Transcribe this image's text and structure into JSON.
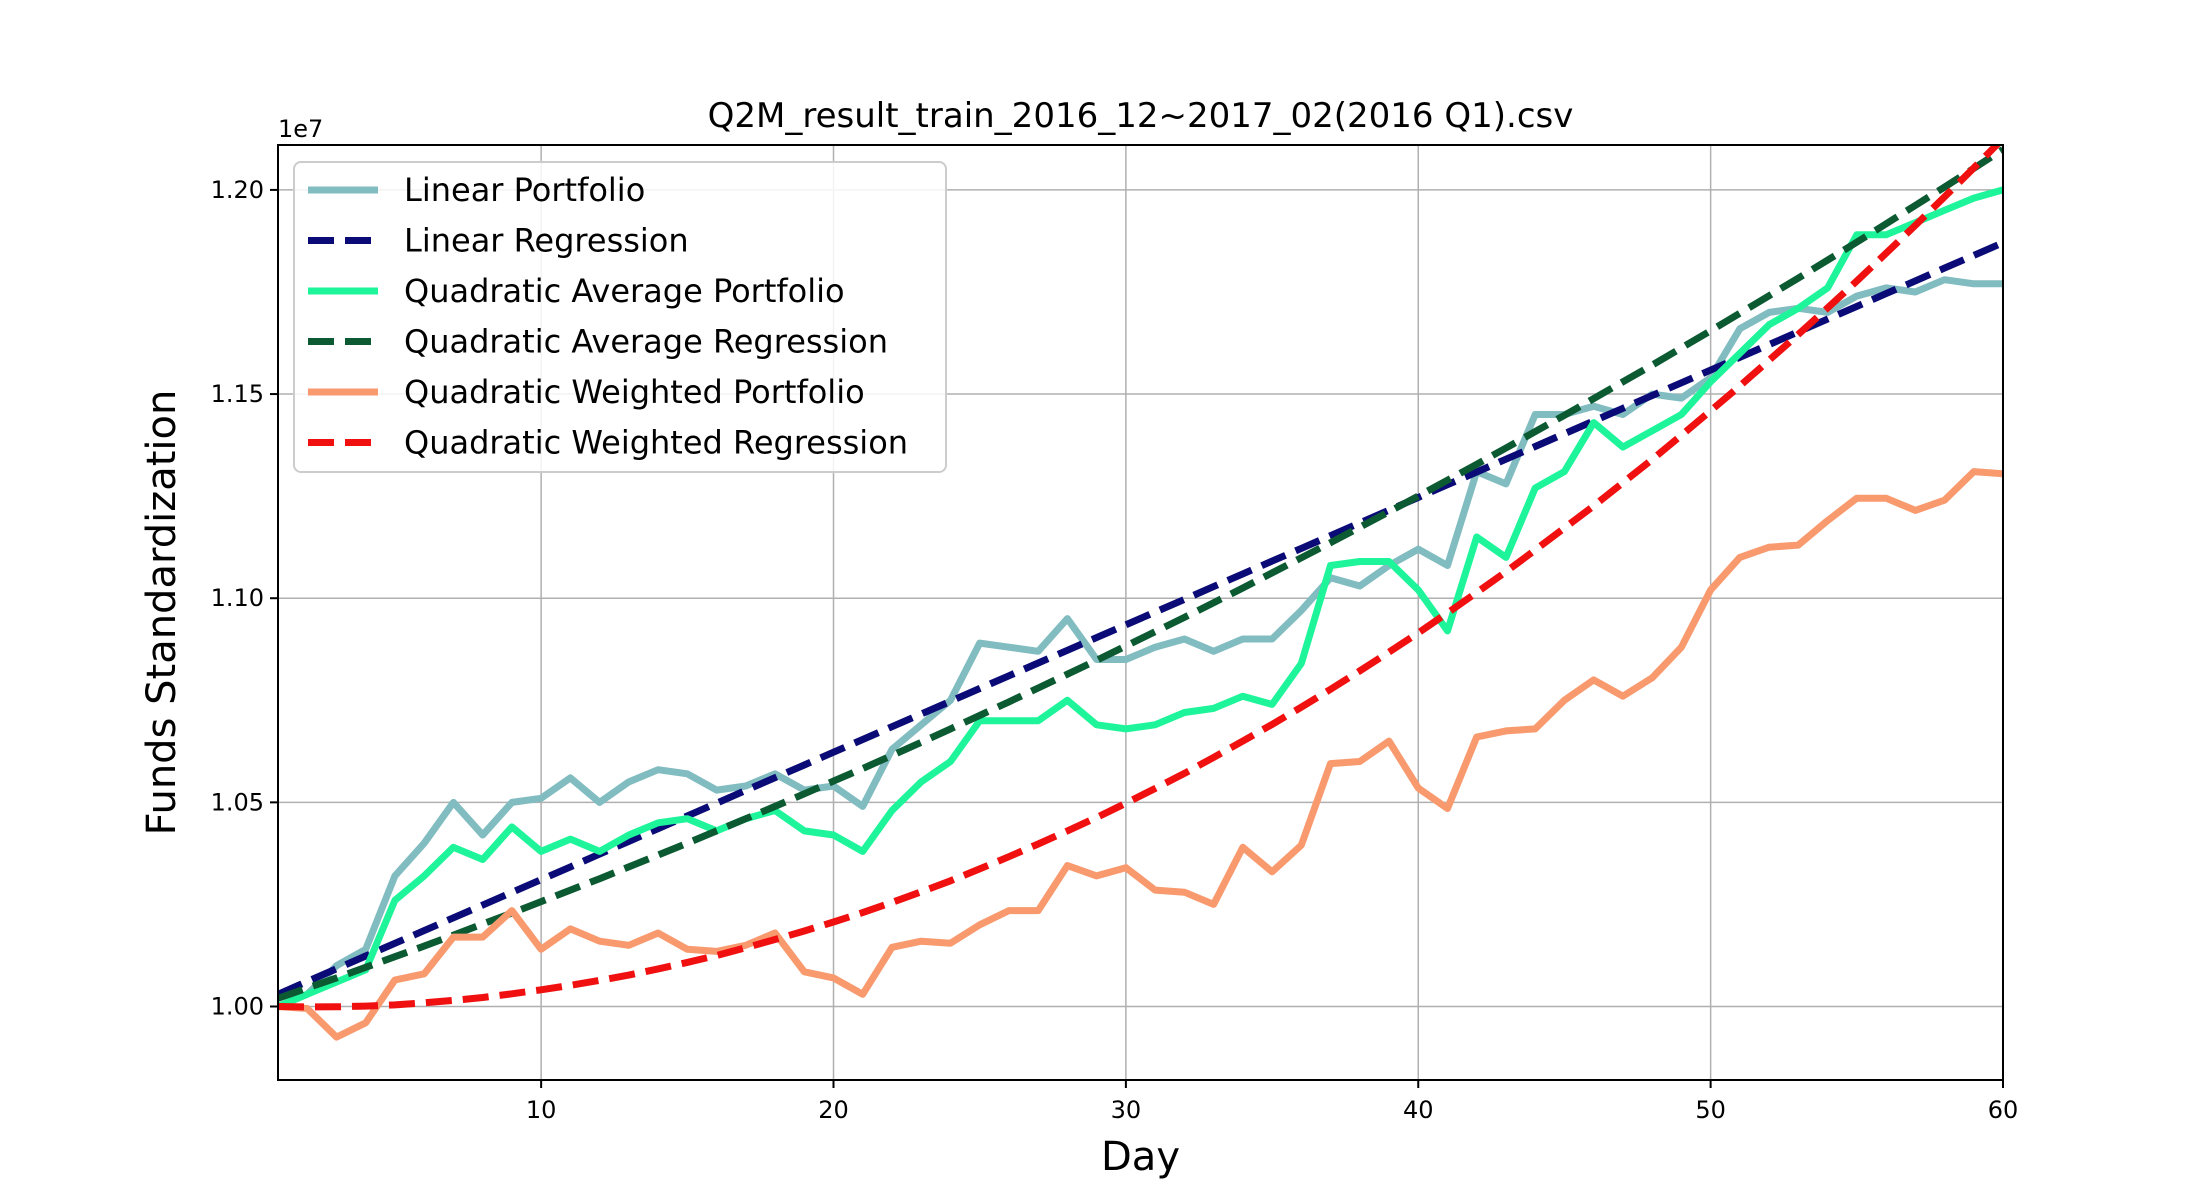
{
  "chart_data": {
    "type": "line",
    "title": "Q2M_result_train_2016_12~2017_02(2016 Q1).csv",
    "xlabel": "Day",
    "ylabel": "Funds Standardization",
    "y_offset_label": "1e7",
    "xlim": [
      1,
      60
    ],
    "ylim": [
      9.82,
      12.11
    ],
    "x_ticks": [
      10,
      20,
      30,
      40,
      50,
      60
    ],
    "x_tick_labels": [
      "10",
      "20",
      "30",
      "40",
      "50",
      "60"
    ],
    "y_ticks": [
      10.0,
      10.5,
      11.0,
      11.5,
      12.0
    ],
    "y_tick_labels": [
      "1.00",
      "1.05",
      "1.10",
      "1.15",
      "1.20"
    ],
    "grid": true,
    "legend_position": "upper-left",
    "x": [
      1,
      2,
      3,
      4,
      5,
      6,
      7,
      8,
      9,
      10,
      11,
      12,
      13,
      14,
      15,
      16,
      17,
      18,
      19,
      20,
      21,
      22,
      23,
      24,
      25,
      26,
      27,
      28,
      29,
      30,
      31,
      32,
      33,
      34,
      35,
      36,
      37,
      38,
      39,
      40,
      41,
      42,
      43,
      44,
      45,
      46,
      47,
      48,
      49,
      50,
      51,
      52,
      53,
      54,
      55,
      56,
      57,
      58,
      59,
      60
    ],
    "series": [
      {
        "name": "Linear Portfolio",
        "color": "#80bcc0",
        "style": "solid",
        "values": [
          10.0,
          10.03,
          10.1,
          10.14,
          10.32,
          10.4,
          10.5,
          10.42,
          10.5,
          10.51,
          10.56,
          10.5,
          10.55,
          10.58,
          10.57,
          10.53,
          10.54,
          10.57,
          10.53,
          10.54,
          10.49,
          10.63,
          10.69,
          10.75,
          10.89,
          10.88,
          10.87,
          10.95,
          10.85,
          10.85,
          10.88,
          10.9,
          10.87,
          10.9,
          10.9,
          10.97,
          11.05,
          11.03,
          11.08,
          11.12,
          11.08,
          11.31,
          11.28,
          11.45,
          11.45,
          11.47,
          11.45,
          11.5,
          11.49,
          11.54,
          11.66,
          11.7,
          11.71,
          11.7,
          11.74,
          11.76,
          11.75,
          11.78,
          11.77,
          11.77
        ]
      },
      {
        "name": "Linear Regression",
        "color": "#0b0b77",
        "style": "dashed",
        "values": [
          10.03,
          10.0612,
          10.0924,
          10.1236,
          10.1548,
          10.186,
          10.2172,
          10.2484,
          10.2796,
          10.3108,
          10.342,
          10.3732,
          10.4044,
          10.4356,
          10.4668,
          10.498,
          10.5292,
          10.5604,
          10.5916,
          10.6228,
          10.654,
          10.6852,
          10.7164,
          10.7476,
          10.7788,
          10.81,
          10.8412,
          10.8724,
          10.9036,
          10.9348,
          10.966,
          10.9972,
          11.0284,
          11.0596,
          11.0908,
          11.122,
          11.1532,
          11.1844,
          11.2156,
          11.2468,
          11.278,
          11.3092,
          11.3404,
          11.3716,
          11.4028,
          11.434,
          11.4652,
          11.4964,
          11.5276,
          11.5588,
          11.59,
          11.6212,
          11.6524,
          11.6836,
          11.7148,
          11.746,
          11.7772,
          11.8084,
          11.8396,
          11.8708
        ]
      },
      {
        "name": "Quadratic Average Portfolio",
        "color": "#1ef59a",
        "style": "solid",
        "values": [
          10.0,
          10.03,
          10.06,
          10.09,
          10.26,
          10.32,
          10.39,
          10.36,
          10.44,
          10.38,
          10.41,
          10.38,
          10.42,
          10.45,
          10.46,
          10.43,
          10.46,
          10.48,
          10.43,
          10.42,
          10.38,
          10.48,
          10.55,
          10.6,
          10.7,
          10.7,
          10.7,
          10.75,
          10.69,
          10.68,
          10.69,
          10.72,
          10.73,
          10.76,
          10.74,
          10.84,
          11.08,
          11.09,
          11.09,
          11.02,
          10.92,
          11.15,
          11.1,
          11.27,
          11.31,
          11.43,
          11.37,
          11.41,
          11.45,
          11.53,
          11.6,
          11.67,
          11.71,
          11.76,
          11.89,
          11.89,
          11.92,
          11.95,
          11.98,
          12.0
        ]
      },
      {
        "name": "Quadratic Average Regression",
        "color": "#0b5a32",
        "style": "dashed",
        "values": [
          10.02,
          10.045,
          10.07,
          10.096,
          10.122,
          10.148,
          10.175,
          10.202,
          10.229,
          10.257,
          10.285,
          10.313,
          10.342,
          10.371,
          10.4,
          10.43,
          10.46,
          10.49,
          10.521,
          10.552,
          10.583,
          10.615,
          10.647,
          10.68,
          10.713,
          10.746,
          10.78,
          10.814,
          10.848,
          10.883,
          10.918,
          10.953,
          10.989,
          11.025,
          11.062,
          11.099,
          11.136,
          11.174,
          11.212,
          11.25,
          11.289,
          11.328,
          11.368,
          11.408,
          11.448,
          11.489,
          11.53,
          11.571,
          11.613,
          11.655,
          11.698,
          11.741,
          11.784,
          11.828,
          11.872,
          11.917,
          11.962,
          12.007,
          12.053,
          12.099
        ]
      },
      {
        "name": "Quadratic Weighted Portfolio",
        "color": "#f89a6e",
        "style": "solid",
        "values": [
          10.0,
          9.995,
          9.925,
          9.96,
          10.065,
          10.08,
          10.17,
          10.17,
          10.235,
          10.14,
          10.19,
          10.16,
          10.15,
          10.18,
          10.14,
          10.135,
          10.15,
          10.18,
          10.085,
          10.07,
          10.03,
          10.145,
          10.16,
          10.155,
          10.2,
          10.235,
          10.235,
          10.345,
          10.32,
          10.34,
          10.285,
          10.28,
          10.25,
          10.39,
          10.33,
          10.395,
          10.595,
          10.6,
          10.65,
          10.535,
          10.485,
          10.66,
          10.675,
          10.68,
          10.75,
          10.8,
          10.76,
          10.805,
          10.88,
          11.02,
          11.1,
          11.125,
          11.13,
          11.19,
          11.245,
          11.245,
          11.215,
          11.24,
          11.31,
          11.305
        ]
      },
      {
        "name": "Quadratic Weighted Regression",
        "color": "#f01010",
        "style": "dashed",
        "values": [
          10.0,
          9.999,
          9.9994,
          10.001,
          10.004,
          10.009,
          10.015,
          10.022,
          10.031,
          10.041,
          10.052,
          10.064,
          10.077,
          10.092,
          10.108,
          10.125,
          10.144,
          10.164,
          10.185,
          10.207,
          10.23,
          10.255,
          10.281,
          10.308,
          10.337,
          10.367,
          10.398,
          10.43,
          10.463,
          10.498,
          10.534,
          10.571,
          10.61,
          10.65,
          10.691,
          10.733,
          10.777,
          10.822,
          10.868,
          10.915,
          10.964,
          11.014,
          11.065,
          11.118,
          11.172,
          11.226,
          11.283,
          11.34,
          11.399,
          11.459,
          11.52,
          11.583,
          11.646,
          11.711,
          11.777,
          11.845,
          11.913,
          11.983,
          12.054,
          12.126
        ]
      }
    ]
  }
}
